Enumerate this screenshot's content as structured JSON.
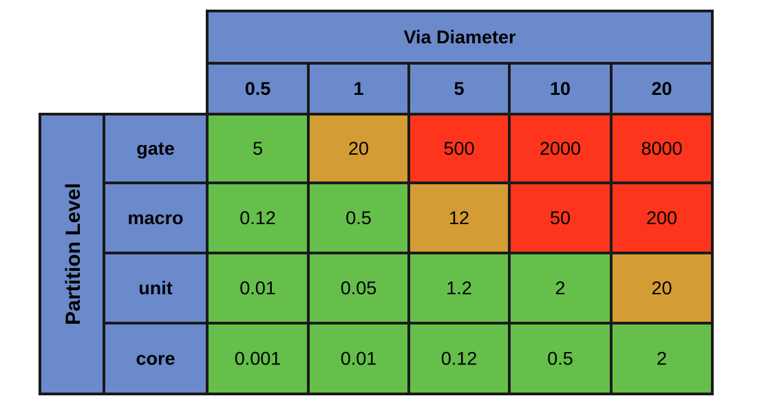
{
  "chart_data": {
    "type": "table",
    "column_header_title": "Via Diameter",
    "row_header_title": "Partition Level",
    "columns": [
      "0.5",
      "1",
      "5",
      "10",
      "20"
    ],
    "rows": [
      "gate",
      "macro",
      "unit",
      "core"
    ],
    "cells": [
      [
        "5",
        "20",
        "500",
        "2000",
        "8000"
      ],
      [
        "0.12",
        "0.5",
        "12",
        "50",
        "200"
      ],
      [
        "0.01",
        "0.05",
        "1.2",
        "2",
        "20"
      ],
      [
        "0.001",
        "0.01",
        "0.12",
        "0.5",
        "2"
      ]
    ],
    "cell_status": [
      [
        "green",
        "orange",
        "red",
        "red",
        "red"
      ],
      [
        "green",
        "green",
        "orange",
        "red",
        "red"
      ],
      [
        "green",
        "green",
        "green",
        "green",
        "orange"
      ],
      [
        "green",
        "green",
        "green",
        "green",
        "green"
      ]
    ]
  },
  "colors": {
    "header": "#6b8acb",
    "green": "#65bf4a",
    "orange": "#d49c34",
    "red": "#fc351c",
    "border": "#1a1a1a"
  }
}
